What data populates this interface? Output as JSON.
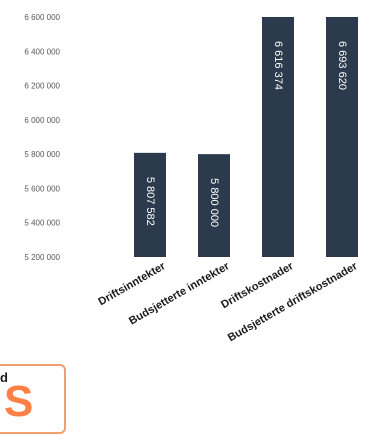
{
  "chart_data": {
    "type": "bar",
    "title": "",
    "xlabel": "",
    "ylabel": "",
    "categories": [
      "Driftsinntekter",
      "Budsjetterte inntekter",
      "Driftskostnader",
      "Budsjetterte driftskostnader"
    ],
    "values": [
      5807582,
      5800000,
      6616374,
      6693620
    ],
    "data_labels": [
      "5 807 582",
      "5 800 000",
      "6 616 374",
      "6 693 620"
    ],
    "ylim": [
      5200000,
      6600000
    ],
    "yticks": [
      5200000,
      5400000,
      5600000,
      5800000,
      6000000,
      6200000,
      6400000,
      6600000
    ],
    "ytick_labels": [
      "5 200 000",
      "5 400 000",
      "5 600 000",
      "5 800 000",
      "6 000 000",
      "6 200 000",
      "6 400 000",
      "6 600 000"
    ],
    "bar_color": "#2b3a4c",
    "grid": false,
    "legend": false
  },
  "overlay": {
    "small_text": "d",
    "big_text": "S",
    "border_color": "#f0a070",
    "accent_color": "#ff7f45"
  }
}
